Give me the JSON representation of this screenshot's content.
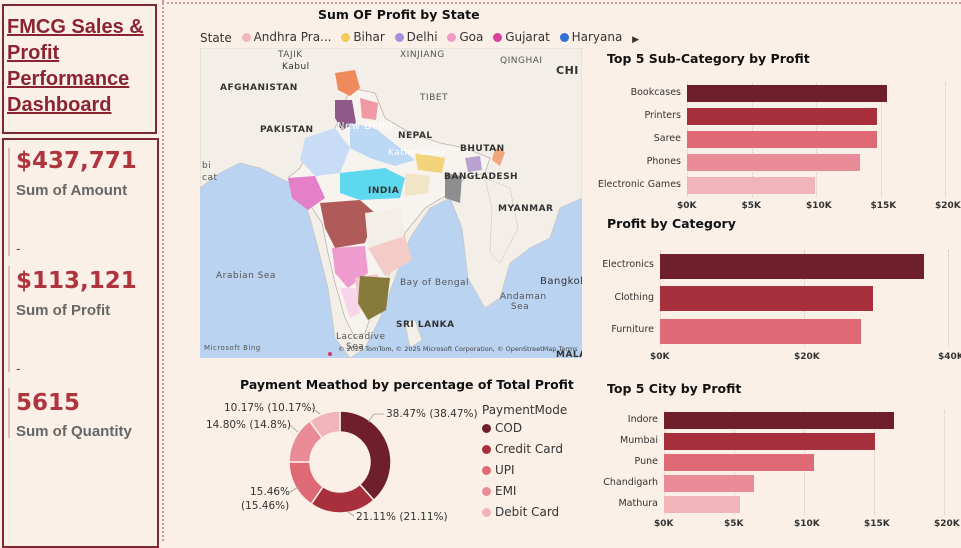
{
  "title": "FMCG Sales & Profit Performance Dashboard",
  "kpis": [
    {
      "value": "$437,771",
      "label": "Sum of Amount"
    },
    {
      "value": "$113,121",
      "label": "Sum of Profit"
    },
    {
      "value": "5615",
      "label": "Sum of Quantity"
    }
  ],
  "kpi_dash": "-",
  "map": {
    "title": "Sum OF Profit by State",
    "legend_label": "State",
    "legend": [
      {
        "name": "Andhra Pra...",
        "color": "#f0b8b8"
      },
      {
        "name": "Bihar",
        "color": "#f2cc5a"
      },
      {
        "name": "Delhi",
        "color": "#a58fd8"
      },
      {
        "name": "Goa",
        "color": "#f29bc7"
      },
      {
        "name": "Gujarat",
        "color": "#d9419e"
      },
      {
        "name": "Haryana",
        "color": "#2f6fd6"
      }
    ],
    "labels": {
      "kabul": "Kabul",
      "afghanistan": "AFGHANISTAN",
      "pakistan": "PAKISTAN",
      "new_delhi": "New Delhi",
      "nepal": "NEPAL",
      "kathmandu": "Kathmandu",
      "bhutan": "BHUTAN",
      "bangladesh": "BANGLADESH",
      "india": "INDIA",
      "myanmar": "MYANMAR",
      "arabian_sea": "Arabian Sea",
      "bay_of_bengal": "Bay of Bengal",
      "andaman_sea": "Andaman Sea",
      "sri_lanka": "SRI LANKA",
      "bangkok": "Bangkok",
      "tibet": "TIBET",
      "xinjiang": "XINJIANG",
      "qinghai": "QINGHAI",
      "chi": "CHI",
      "tajik": "TAJIK",
      "laccadive": "Laccadive",
      "sea": "Sea",
      "mala": "MALA",
      "bi": "bi",
      "cat": "cat",
      "microsoft_bing": "Microsoft Bing",
      "attribution": "© 2025 TomTom, © 2025 Microsoft Corporation, © OpenStreetMap  Terms"
    }
  },
  "payment": {
    "title": "Payment Meathod by percentage of Total Profit",
    "legend_title": "PaymentMode",
    "items": [
      {
        "name": "COD",
        "value": 38.47,
        "label": "38.47% (38.47%)",
        "color": "#6e1f2a"
      },
      {
        "name": "Credit Card",
        "value": 21.11,
        "label": "21.11% (21.11%)",
        "color": "#a8303c"
      },
      {
        "name": "UPI",
        "value": 15.46,
        "label": "15.46%",
        "label2": "(15.46%)",
        "color": "#df6a75"
      },
      {
        "name": "EMI",
        "value": 14.8,
        "label": "14.80% (14.8%)",
        "color": "#e98c97"
      },
      {
        "name": "Debit Card",
        "value": 10.17,
        "label": "10.17% (10.17%)",
        "color": "#f1b4b8"
      }
    ]
  },
  "subcat": {
    "title": "Top 5 Sub-Category by Profit",
    "categories": [
      "Bookcases",
      "Printers",
      "Saree",
      "Phones",
      "Electronic Games"
    ],
    "values": [
      15500,
      14700,
      14700,
      13400,
      9900
    ],
    "colors": [
      "#6e1f2a",
      "#a8303c",
      "#df6a75",
      "#e98c97",
      "#f1b4b8"
    ],
    "ticks": [
      "$0K",
      "$5K",
      "$10K",
      "$15K",
      "$20K"
    ],
    "xlim": [
      0,
      20000
    ]
  },
  "category": {
    "title": "Profit by Category",
    "categories": [
      "Electronics",
      "Clothing",
      "Furniture"
    ],
    "values": [
      44000,
      35500,
      33500
    ],
    "colors": [
      "#6e1f2a",
      "#a8303c",
      "#df6a75"
    ],
    "ticks": [
      "$0K",
      "$20K",
      "$40K"
    ],
    "xlim": [
      0,
      48000
    ]
  },
  "city": {
    "title": "Top 5 City by Profit",
    "categories": [
      "Indore",
      "Mumbai",
      "Pune",
      "Chandigarh",
      "Mathura"
    ],
    "values": [
      16400,
      15100,
      10700,
      6400,
      5400
    ],
    "colors": [
      "#6e1f2a",
      "#a8303c",
      "#df6a75",
      "#e98c97",
      "#f1b4b8"
    ],
    "ticks": [
      "$0K",
      "$5K",
      "$10K",
      "$15K",
      "$20K"
    ],
    "xlim": [
      0,
      20000
    ]
  }
}
